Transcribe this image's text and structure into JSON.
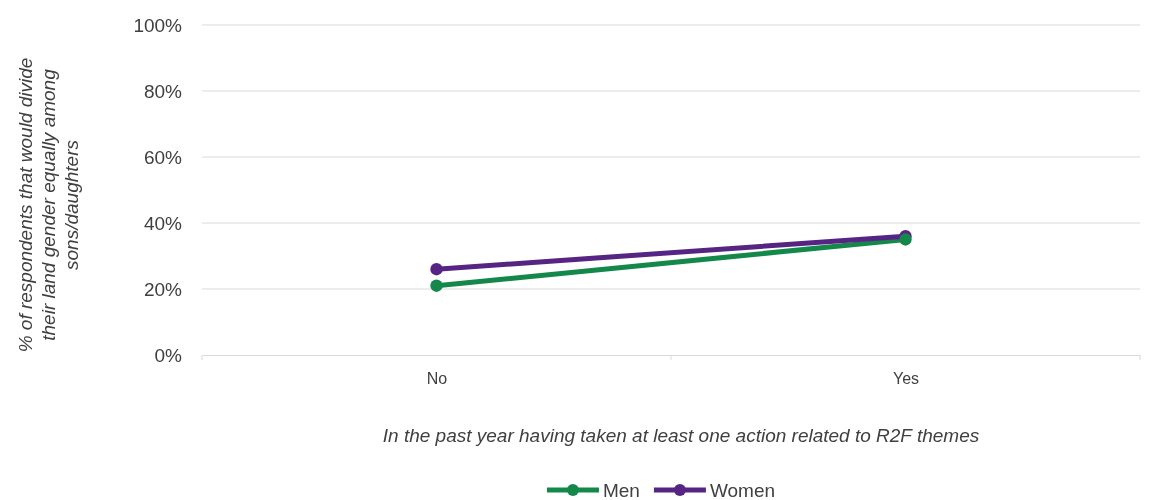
{
  "chart_data": {
    "type": "line",
    "xlabel": "In the past year having  taken at least one action related to R2F themes",
    "ylabel": "% of respondents that would divide their land gender equally among sons/daughters",
    "categories": [
      "No",
      "Yes"
    ],
    "series": [
      {
        "name": "Men",
        "color": "#13884a",
        "values": [
          21,
          35
        ]
      },
      {
        "name": "Women",
        "color": "#562583",
        "values": [
          26,
          36
        ]
      }
    ],
    "ylim": [
      0,
      100
    ],
    "yticks": [
      {
        "value": 0,
        "label": "0%"
      },
      {
        "value": 20,
        "label": "20%"
      },
      {
        "value": 40,
        "label": "40%"
      },
      {
        "value": 60,
        "label": "60%"
      },
      {
        "value": 80,
        "label": "80%"
      },
      {
        "value": 100,
        "label": "100%"
      }
    ],
    "grid": "y",
    "legend": "bottom",
    "marker": "circle",
    "line_style": "solid"
  }
}
